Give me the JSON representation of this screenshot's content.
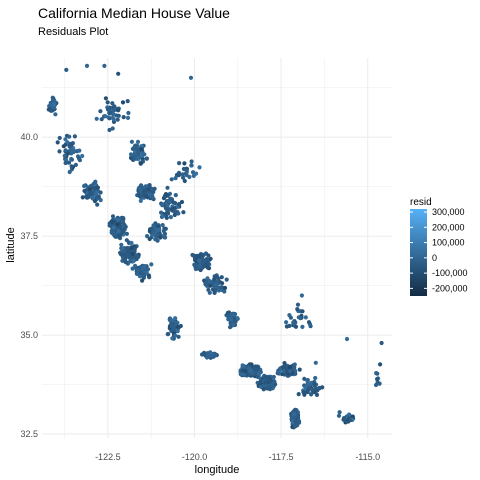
{
  "chart_data": {
    "type": "scatter",
    "title": "California Median House Value",
    "subtitle": "Residuals Plot",
    "xlabel": "longitude",
    "ylabel": "latitude",
    "xlim": [
      -124.4,
      -114.3
    ],
    "ylim": [
      32.4,
      42.0
    ],
    "x_ticks": [
      -122.5,
      -120.0,
      -117.5,
      -115.0
    ],
    "x_tick_labels": [
      "-122.5",
      "-120.0",
      "-117.5",
      "-115.0"
    ],
    "y_ticks": [
      32.5,
      35.0,
      37.5,
      40.0
    ],
    "y_tick_labels": [
      "32.5",
      "35.0",
      "37.5",
      "40.0"
    ],
    "grid": true,
    "legend": {
      "title": "resid",
      "placement": "right",
      "type": "colorbar",
      "range": [
        -250000,
        320000
      ],
      "ticks": [
        300000,
        200000,
        100000,
        0,
        -100000,
        -200000
      ],
      "tick_labels": [
        "300,000",
        "200,000",
        "100,000",
        "0",
        "-100,000",
        "-200,000"
      ],
      "color_low": "#132b43",
      "color_high": "#56b1f7"
    },
    "clusters": [
      {
        "lon": -124.1,
        "lat": 40.8,
        "spread_lon": 0.15,
        "spread_lat": 0.35,
        "count": 30
      },
      {
        "lon": -123.6,
        "lat": 39.6,
        "spread_lon": 0.45,
        "spread_lat": 0.6,
        "count": 45
      },
      {
        "lon": -122.3,
        "lat": 40.6,
        "spread_lon": 0.55,
        "spread_lat": 0.5,
        "count": 40
      },
      {
        "lon": -122.9,
        "lat": 38.6,
        "spread_lon": 0.4,
        "spread_lat": 0.35,
        "count": 70
      },
      {
        "lon": -122.2,
        "lat": 37.7,
        "spread_lon": 0.3,
        "spread_lat": 0.35,
        "count": 200
      },
      {
        "lon": -121.9,
        "lat": 37.1,
        "spread_lon": 0.35,
        "spread_lat": 0.35,
        "count": 110
      },
      {
        "lon": -121.4,
        "lat": 38.6,
        "spread_lon": 0.3,
        "spread_lat": 0.25,
        "count": 110
      },
      {
        "lon": -121.6,
        "lat": 39.6,
        "spread_lon": 0.35,
        "spread_lat": 0.35,
        "count": 60
      },
      {
        "lon": -121.1,
        "lat": 37.6,
        "spread_lon": 0.35,
        "spread_lat": 0.3,
        "count": 60
      },
      {
        "lon": -120.7,
        "lat": 38.3,
        "spread_lon": 0.45,
        "spread_lat": 0.5,
        "count": 60
      },
      {
        "lon": -121.5,
        "lat": 36.6,
        "spread_lon": 0.35,
        "spread_lat": 0.3,
        "count": 45
      },
      {
        "lon": -119.8,
        "lat": 36.8,
        "spread_lon": 0.35,
        "spread_lat": 0.3,
        "count": 90
      },
      {
        "lon": -119.4,
        "lat": 36.3,
        "spread_lon": 0.4,
        "spread_lat": 0.35,
        "count": 50
      },
      {
        "lon": -118.9,
        "lat": 35.4,
        "spread_lon": 0.25,
        "spread_lat": 0.25,
        "count": 45
      },
      {
        "lon": -120.6,
        "lat": 35.2,
        "spread_lon": 0.3,
        "spread_lat": 0.4,
        "count": 40
      },
      {
        "lon": -119.6,
        "lat": 34.5,
        "spread_lon": 0.3,
        "spread_lat": 0.12,
        "count": 35
      },
      {
        "lon": -118.4,
        "lat": 34.1,
        "spread_lon": 0.35,
        "spread_lat": 0.18,
        "count": 320
      },
      {
        "lon": -117.9,
        "lat": 33.8,
        "spread_lon": 0.3,
        "spread_lat": 0.2,
        "count": 220
      },
      {
        "lon": -117.3,
        "lat": 34.1,
        "spread_lon": 0.35,
        "spread_lat": 0.2,
        "count": 120
      },
      {
        "lon": -117.1,
        "lat": 32.9,
        "spread_lon": 0.15,
        "spread_lat": 0.3,
        "count": 130
      },
      {
        "lon": -116.6,
        "lat": 33.7,
        "spread_lon": 0.45,
        "spread_lat": 0.3,
        "count": 45
      },
      {
        "lon": -117.0,
        "lat": 35.4,
        "spread_lon": 0.7,
        "spread_lat": 0.5,
        "count": 25
      },
      {
        "lon": -115.6,
        "lat": 32.9,
        "spread_lon": 0.3,
        "spread_lat": 0.25,
        "count": 20
      },
      {
        "lon": -114.7,
        "lat": 33.8,
        "spread_lon": 0.15,
        "spread_lat": 0.7,
        "count": 9
      },
      {
        "lon": -120.3,
        "lat": 39.1,
        "spread_lon": 0.5,
        "spread_lat": 0.6,
        "count": 25
      }
    ],
    "outliers": [
      {
        "lon": -122.6,
        "lat": 41.8
      },
      {
        "lon": -122.2,
        "lat": 41.6
      },
      {
        "lon": -123.7,
        "lat": 41.7
      },
      {
        "lon": -123.1,
        "lat": 41.8
      },
      {
        "lon": -116.9,
        "lat": 36.0
      },
      {
        "lon": -115.6,
        "lat": 34.9
      },
      {
        "lon": -114.6,
        "lat": 34.8
      },
      {
        "lon": -120.1,
        "lat": 41.5
      },
      {
        "lon": -116.5,
        "lat": 34.3
      }
    ]
  }
}
